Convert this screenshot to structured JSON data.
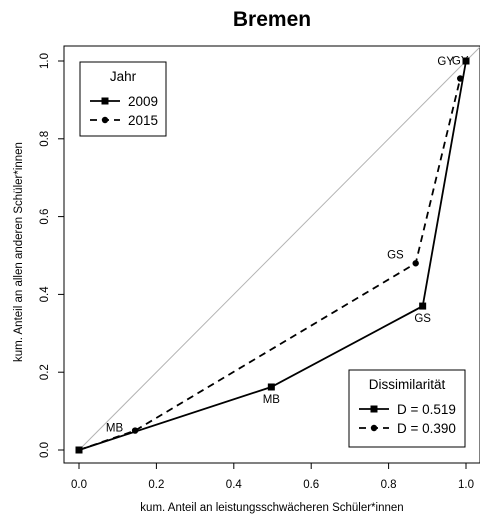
{
  "chart_data": {
    "type": "line",
    "title": "Bremen",
    "xlabel": "kum. Anteil an leistungsschwächeren Schüler*innen",
    "ylabel": "kum. Anteil an allen anderen Schüler*innen",
    "xlim": [
      0,
      1
    ],
    "ylim": [
      0,
      1
    ],
    "xticks": [
      "0.0",
      "0.2",
      "0.4",
      "0.6",
      "0.8",
      "1.0"
    ],
    "yticks": [
      "0.0",
      "0.2",
      "0.4",
      "0.6",
      "0.8",
      "1.0"
    ],
    "grid": false,
    "reference_line": {
      "x": [
        0,
        1
      ],
      "y": [
        0,
        1
      ],
      "color": "#b3b3b3"
    },
    "series": [
      {
        "name": "2009",
        "line_style": "solid",
        "marker": "square",
        "x": [
          0.0,
          0.497,
          0.888,
          1.0
        ],
        "y": [
          0.0,
          0.162,
          0.37,
          1.0
        ],
        "point_labels": [
          "",
          "MB",
          "GS",
          "GY"
        ]
      },
      {
        "name": "2015",
        "line_style": "dashed",
        "marker": "circle",
        "x": [
          0.0,
          0.145,
          0.87,
          0.985
        ],
        "y": [
          0.0,
          0.05,
          0.48,
          0.955
        ],
        "point_labels": [
          "",
          "MB",
          "GS",
          "GY"
        ]
      }
    ],
    "legends": [
      {
        "title": "Jahr",
        "position": "top-left",
        "entries": [
          "2009",
          "2015"
        ]
      },
      {
        "title": "Dissimilarität",
        "position": "bottom-right",
        "entries": [
          "D = 0.519",
          "D = 0.390"
        ]
      }
    ]
  }
}
